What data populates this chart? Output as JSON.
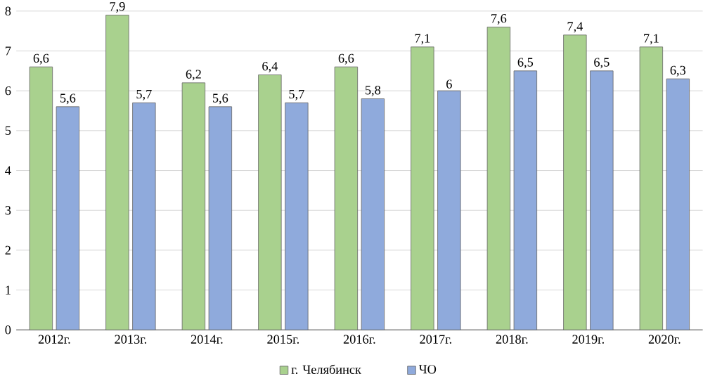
{
  "chart_data": {
    "type": "bar",
    "categories": [
      "2012г.",
      "2013г.",
      "2014г.",
      "2015г.",
      "2016г.",
      "2017г.",
      "2018г.",
      "2019г.",
      "2020г."
    ],
    "series": [
      {
        "name": "г. Челябинск",
        "color": "#a9d18e",
        "values": [
          6.6,
          7.9,
          6.2,
          6.4,
          6.6,
          7.1,
          7.6,
          7.4,
          7.1
        ],
        "value_labels": [
          "6,6",
          "7,9",
          "6,2",
          "6,4",
          "6,6",
          "7,1",
          "7,6",
          "7,4",
          "7,1"
        ]
      },
      {
        "name": "ЧО",
        "color": "#8faadc",
        "values": [
          5.6,
          5.7,
          5.6,
          5.7,
          5.8,
          6,
          6.5,
          6.5,
          6.3
        ],
        "value_labels": [
          "5,6",
          "5,7",
          "5,6",
          "5,7",
          "5,8",
          "6",
          "6,5",
          "6,5",
          "6,3"
        ]
      }
    ],
    "ylim": [
      0,
      8
    ],
    "yticks": [
      0,
      1,
      2,
      3,
      4,
      5,
      6,
      7,
      8
    ],
    "grid": "y",
    "legend": "bottom"
  }
}
